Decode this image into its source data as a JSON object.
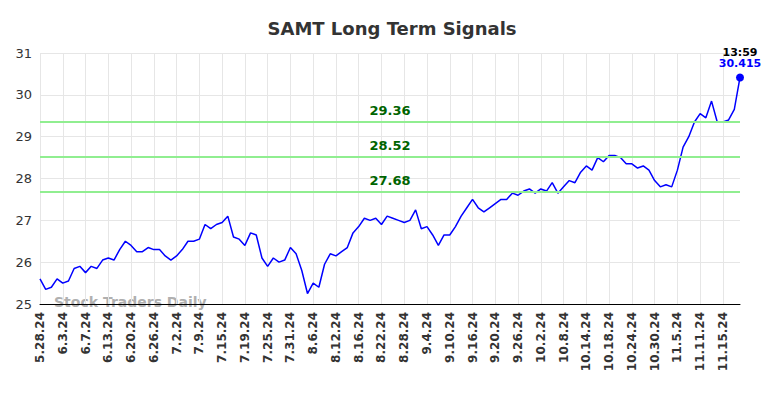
{
  "chart_data": {
    "type": "line",
    "title": "SAMT Long Term Signals",
    "watermark": "Stock Traders Daily",
    "last_time": "13:59",
    "color": "#0000ff",
    "signals": [
      29.36,
      28.52,
      27.68
    ],
    "signal_color": "#90ee90",
    "signal_label_color": "#006400",
    "ylim": [
      25,
      31
    ],
    "yticks": [
      25,
      26,
      27,
      28,
      29,
      30,
      31
    ],
    "grid": true,
    "categories": [
      "5.28.24",
      null,
      null,
      null,
      "6.3.24",
      null,
      null,
      null,
      "6.7.24",
      null,
      null,
      null,
      "6.13.24",
      null,
      null,
      null,
      "6.20.24",
      null,
      null,
      null,
      "6.26.24",
      null,
      null,
      null,
      "7.2.24",
      null,
      null,
      null,
      "7.9.24",
      null,
      null,
      null,
      "7.15.24",
      null,
      null,
      null,
      "7.19.24",
      null,
      null,
      null,
      "7.25.24",
      null,
      null,
      null,
      "7.31.24",
      null,
      null,
      null,
      "8.6.24",
      null,
      null,
      null,
      "8.12.24",
      null,
      null,
      null,
      "8.16.24",
      null,
      null,
      null,
      "8.22.24",
      null,
      null,
      null,
      "8.28.24",
      null,
      null,
      null,
      "9.4.24",
      null,
      null,
      null,
      "9.10.24",
      null,
      null,
      null,
      "9.16.24",
      null,
      null,
      null,
      "9.20.24",
      null,
      null,
      null,
      "9.26.24",
      null,
      null,
      null,
      "10.2.24",
      null,
      null,
      null,
      "10.8.24",
      null,
      null,
      null,
      "10.14.24",
      null,
      null,
      null,
      "10.18.24",
      null,
      null,
      null,
      "10.24.24",
      null,
      null,
      null,
      "10.30.24",
      null,
      null,
      null,
      "11.5.24",
      null,
      null,
      null,
      "11.11.24",
      null,
      null,
      null,
      "11.15.24",
      null,
      null,
      null
    ],
    "values": [
      25.6,
      25.35,
      25.4,
      25.6,
      25.5,
      25.55,
      25.85,
      25.9,
      25.75,
      25.9,
      25.85,
      26.05,
      26.1,
      26.05,
      26.3,
      26.5,
      26.4,
      26.25,
      26.25,
      26.35,
      26.3,
      26.3,
      26.15,
      26.05,
      26.15,
      26.3,
      26.5,
      26.5,
      26.55,
      26.9,
      26.8,
      26.9,
      26.95,
      27.1,
      26.6,
      26.55,
      26.4,
      26.7,
      26.65,
      26.1,
      25.9,
      26.1,
      26.0,
      26.05,
      26.35,
      26.2,
      25.8,
      25.25,
      25.5,
      25.4,
      25.95,
      26.2,
      26.15,
      26.25,
      26.35,
      26.7,
      26.85,
      27.05,
      27.0,
      27.05,
      26.9,
      27.1,
      27.05,
      27.0,
      26.95,
      27.0,
      27.25,
      26.8,
      26.85,
      26.65,
      26.4,
      26.65,
      26.65,
      26.85,
      27.1,
      27.3,
      27.5,
      27.3,
      27.2,
      27.3,
      27.4,
      27.5,
      27.5,
      27.65,
      27.6,
      27.7,
      27.75,
      27.65,
      27.75,
      27.7,
      27.9,
      27.65,
      27.8,
      27.95,
      27.9,
      28.15,
      28.3,
      28.2,
      28.5,
      28.4,
      28.55,
      28.55,
      28.5,
      28.35,
      28.35,
      28.25,
      28.3,
      28.2,
      27.95,
      27.8,
      27.85,
      27.8,
      28.2,
      28.75,
      29.0,
      29.35,
      29.55,
      29.45,
      29.85,
      29.35,
      29.35,
      29.4,
      29.65,
      30.415
    ]
  }
}
